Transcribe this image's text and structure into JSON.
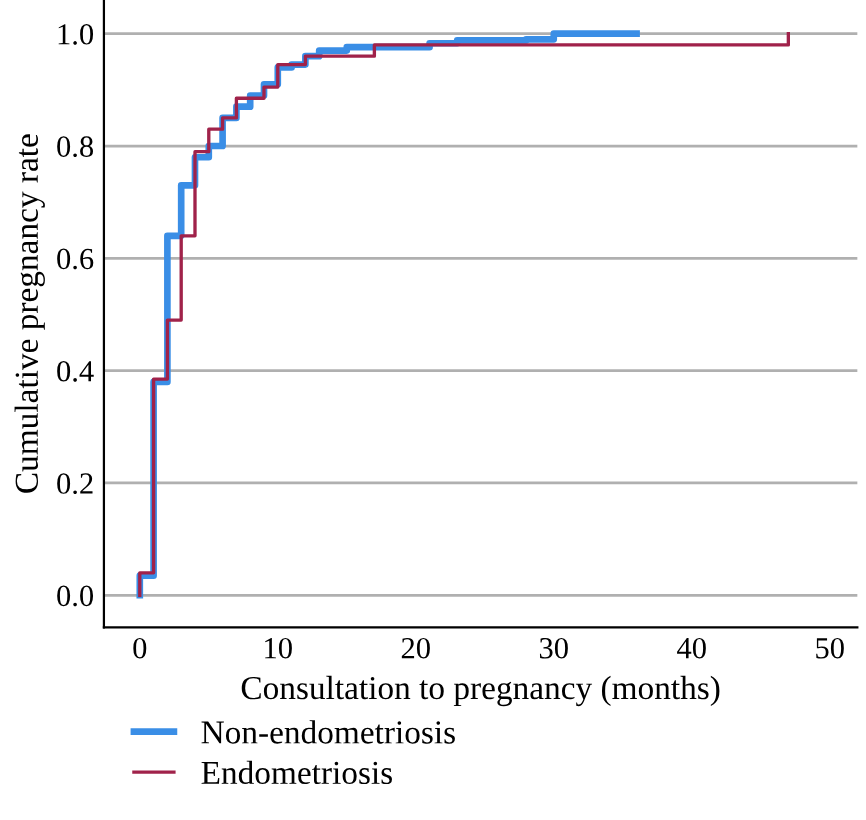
{
  "chart_data": {
    "type": "step",
    "xlabel": "Consultation to pregnancy (months)",
    "ylabel": "Cumulative pregnancy rate",
    "xlim": [
      -2.6,
      52
    ],
    "xticks": [
      0,
      10,
      20,
      30,
      40,
      50
    ],
    "ylim": [
      -0.057,
      1.06
    ],
    "yticks": [
      {
        "value": 0,
        "label": "0.0"
      },
      0.2,
      0.4,
      0.6,
      0.8,
      {
        "value": 1,
        "label": "1.0"
      }
    ],
    "grid": "y",
    "legend": "bottom left",
    "series": [
      {
        "name": "Non-endometriosis",
        "color": "#3a8ee6",
        "x": [
          0,
          0,
          1,
          2,
          3,
          4,
          5,
          6,
          7,
          8,
          9,
          10,
          11,
          12,
          13,
          15,
          21,
          23,
          28,
          30,
          36
        ],
        "values": [
          0,
          0.035,
          0.38,
          0.64,
          0.73,
          0.78,
          0.8,
          0.85,
          0.87,
          0.89,
          0.91,
          0.94,
          0.945,
          0.96,
          0.97,
          0.976,
          0.983,
          0.988,
          0.99,
          1.0,
          1.0
        ]
      },
      {
        "name": "Endometriosis",
        "color": "#a0224a",
        "x": [
          0,
          0,
          1,
          2,
          3,
          4,
          5,
          6,
          7,
          9,
          10,
          12,
          17,
          47
        ],
        "values": [
          0,
          0.04,
          0.385,
          0.49,
          0.64,
          0.79,
          0.83,
          0.85,
          0.885,
          0.905,
          0.945,
          0.96,
          0.98,
          1.0
        ]
      }
    ]
  }
}
